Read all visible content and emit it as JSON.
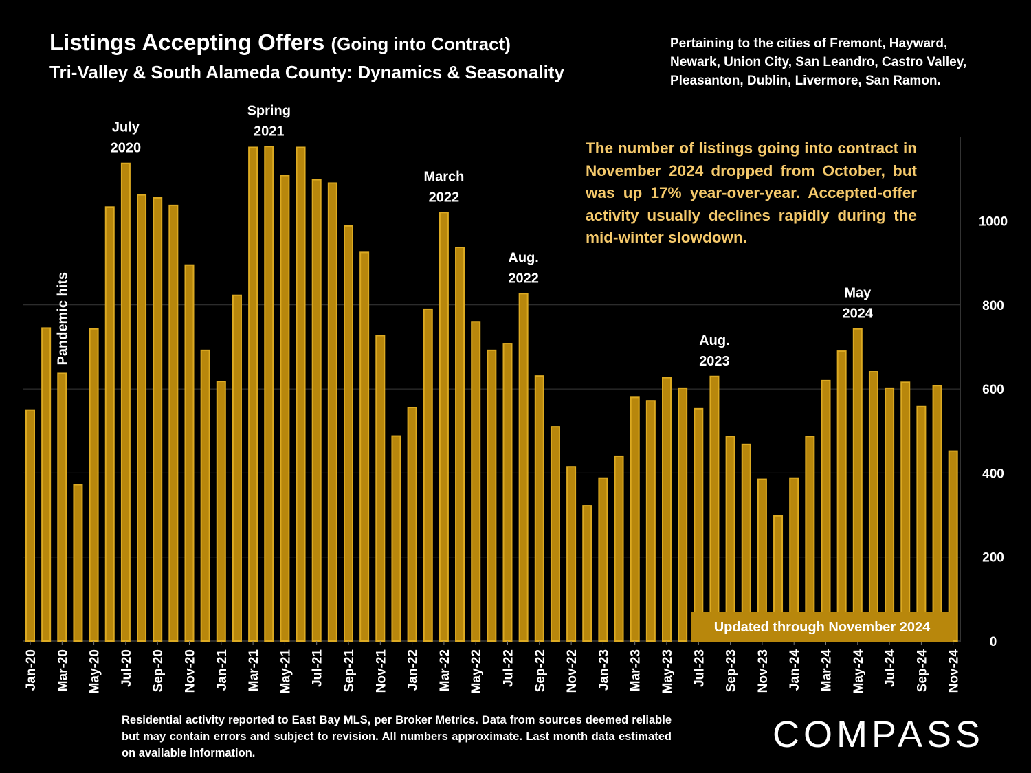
{
  "header": {
    "title": "Listings Accepting Offers",
    "title_sub": "(Going into Contract)",
    "subtitle": "Tri-Valley & South Alameda County: Dynamics & Seasonality",
    "cities_note": "Pertaining to the cities of Fremont, Hayward, Newark, Union City, San Leandro, Castro Valley, Pleasanton, Dublin, Livermore, San Ramon."
  },
  "callout": "The number of listings going into contract in November 2024 dropped from October, but was up 17% year-over-year. Accepted-offer activity usually declines rapidly during the mid-winter slowdown.",
  "updated_badge": "Updated through November 2024",
  "footnote": "Residential activity reported to East Bay MLS, per Broker Metrics. Data from sources deemed reliable but may contain errors and subject to revision.  All numbers approximate. Last month data estimated on available information.",
  "logo": "COMPASS",
  "colors": {
    "bar_fill": "#b8870c",
    "bar_edge": "#dcaa22",
    "background": "#000000",
    "callout_text": "#f5c96b",
    "gridline": "#3a3a3a"
  },
  "chart_data": {
    "type": "bar",
    "categories": [
      "Jan-20",
      "Feb-20",
      "Mar-20",
      "Apr-20",
      "May-20",
      "Jun-20",
      "Jul-20",
      "Aug-20",
      "Sep-20",
      "Oct-20",
      "Nov-20",
      "Dec-20",
      "Jan-21",
      "Feb-21",
      "Mar-21",
      "Apr-21",
      "May-21",
      "Jun-21",
      "Jul-21",
      "Aug-21",
      "Sep-21",
      "Oct-21",
      "Nov-21",
      "Dec-21",
      "Jan-22",
      "Feb-22",
      "Mar-22",
      "Apr-22",
      "May-22",
      "Jun-22",
      "Jul-22",
      "Aug-22",
      "Sep-22",
      "Oct-22",
      "Nov-22",
      "Dec-22",
      "Jan-23",
      "Feb-23",
      "Mar-23",
      "Apr-23",
      "May-23",
      "Jun-23",
      "Jul-23",
      "Aug-23",
      "Sep-23",
      "Oct-23",
      "Nov-23",
      "Dec-23",
      "Jan-24",
      "Feb-24",
      "Mar-24",
      "Apr-24",
      "May-24",
      "Jun-24",
      "Jul-24",
      "Aug-24",
      "Sep-24",
      "Oct-24",
      "Nov-24"
    ],
    "tick_labels": [
      "Jan-20",
      "Mar-20",
      "May-20",
      "Jul-20",
      "Sep-20",
      "Nov-20",
      "Jan-21",
      "Mar-21",
      "May-21",
      "Jul-21",
      "Sep-21",
      "Nov-21",
      "Jan-22",
      "Mar-22",
      "May-22",
      "Jul-22",
      "Sep-22",
      "Nov-22",
      "Jan-23",
      "Mar-23",
      "May-23",
      "Jul-23",
      "Sep-23",
      "Nov-23",
      "Jan-24",
      "Mar-24",
      "May-24",
      "Jul-24",
      "Sep-24",
      "Nov-24"
    ],
    "values": [
      550,
      745,
      637,
      372,
      743,
      1033,
      1137,
      1062,
      1055,
      1037,
      895,
      692,
      618,
      823,
      1175,
      1177,
      1108,
      1175,
      1098,
      1090,
      988,
      925,
      727,
      488,
      556,
      790,
      1020,
      937,
      760,
      692,
      708,
      827,
      631,
      510,
      415,
      322,
      388,
      440,
      580,
      572,
      627,
      602,
      553,
      630,
      487,
      468,
      385,
      298,
      388,
      487,
      620,
      690,
      743,
      641,
      602,
      616,
      558,
      608,
      452
    ],
    "y_ticks": [
      0,
      200,
      400,
      600,
      800,
      1000
    ],
    "ylim": [
      0,
      1200
    ],
    "annotations": [
      {
        "index": 2,
        "text": "Pandemic hits",
        "rotated": true
      },
      {
        "index": 6,
        "lines": [
          "July",
          "2020"
        ]
      },
      {
        "index": 15,
        "lines": [
          "Spring",
          "2021"
        ]
      },
      {
        "index": 26,
        "lines": [
          "March",
          "2022"
        ]
      },
      {
        "index": 31,
        "lines": [
          "Aug.",
          "2022"
        ]
      },
      {
        "index": 43,
        "lines": [
          "Aug.",
          "2023"
        ]
      },
      {
        "index": 52,
        "lines": [
          "May",
          "2024"
        ]
      }
    ],
    "xlabel": "",
    "ylabel": "",
    "grid": true,
    "y_axis_side": "right"
  }
}
